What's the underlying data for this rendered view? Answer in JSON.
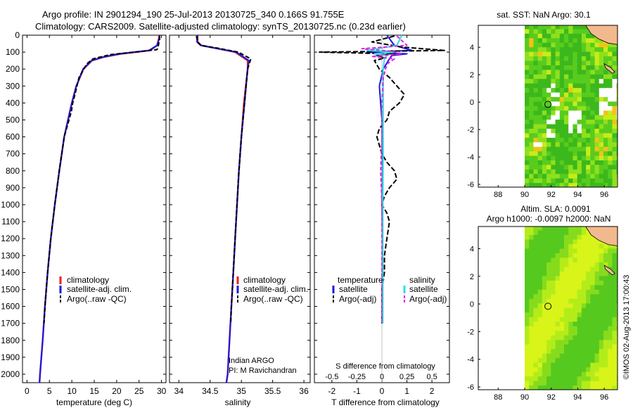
{
  "header": {
    "line1": "Argo profile: IN 2901294_190 25-Jul-2013 20130725_340 0.166S 91.755E",
    "line2": "Climatology: CARS2009. Satellite-adjusted climatology: synTS_20130725.nc (0.23d earlier)"
  },
  "colors": {
    "climatology": "#e8221c",
    "satellite": "#1a1ae0",
    "argo": "#000000",
    "sat_diff": "#2ee0e6",
    "argo_sdiff": "#e020e0",
    "land": "#f2b98e",
    "map_green": "#52c81f",
    "map_lime": "#b0ec1a"
  },
  "chart_data": [
    {
      "id": "temperature",
      "type": "line",
      "xlabel": "temperature (deg C)",
      "xlim": [
        -1,
        31
      ],
      "xticks": [
        0,
        5,
        10,
        15,
        20,
        25,
        30
      ],
      "ylim": [
        2050,
        0
      ],
      "yticks": [
        0,
        100,
        200,
        300,
        400,
        500,
        600,
        700,
        800,
        900,
        1000,
        1100,
        1200,
        1300,
        1400,
        1500,
        1600,
        1700,
        1800,
        1900,
        2000
      ],
      "legend": [
        "climatology",
        "satellite-adj. clim.",
        "Argo(..raw -QC)"
      ],
      "series": [
        {
          "name": "climatology",
          "depth": [
            0,
            20,
            60,
            90,
            110,
            130,
            150,
            200,
            300,
            400,
            600,
            800,
            1000,
            1200,
            1400,
            1600,
            1800,
            2000,
            2050
          ],
          "values": [
            29.5,
            29.4,
            29.0,
            27.5,
            21,
            17,
            14.5,
            12.6,
            11.0,
            10.0,
            8.3,
            7.2,
            6.2,
            5.3,
            4.6,
            4.0,
            3.5,
            2.9,
            2.8
          ]
        },
        {
          "name": "satellite-adj. clim.",
          "depth": [
            0,
            20,
            60,
            90,
            110,
            130,
            150,
            200,
            300,
            400,
            600,
            800,
            1000,
            1200,
            1400,
            1600,
            1800,
            2000,
            2050
          ],
          "values": [
            29.6,
            29.5,
            29.0,
            27.2,
            20.5,
            16.8,
            14.4,
            12.5,
            11.0,
            10.0,
            8.3,
            7.2,
            6.2,
            5.3,
            4.6,
            4.0,
            3.5,
            2.9,
            2.8
          ]
        },
        {
          "name": "Argo(..raw -QC)",
          "depth": [
            5,
            20,
            60,
            85,
            100,
            115,
            140,
            170,
            250,
            350,
            400,
            450,
            600,
            800,
            1000,
            1200,
            1400,
            1600,
            1700
          ],
          "values": [
            29.5,
            29.6,
            29.3,
            29.0,
            24,
            18.5,
            14.7,
            13.3,
            11.6,
            10.7,
            10.2,
            9.9,
            8.3,
            7.2,
            6.2,
            5.3,
            4.6,
            4.0,
            3.8
          ]
        }
      ]
    },
    {
      "id": "salinity",
      "type": "line",
      "xlabel": "salinity",
      "xlim": [
        33.85,
        36.1
      ],
      "xticks": [
        34,
        34.5,
        35,
        35.5,
        36
      ],
      "ylim": [
        2050,
        0
      ],
      "legend": [
        "climatology",
        "satellite-adj. clim.",
        "Argo(..raw -QC)"
      ],
      "annotation": [
        "Indian ARGO",
        "PI: M Ravichandran"
      ],
      "series": [
        {
          "name": "climatology",
          "depth": [
            0,
            40,
            60,
            100,
            150,
            200,
            400,
            600,
            800,
            1000,
            1200,
            1400,
            1600,
            1800,
            2000,
            2050
          ],
          "values": [
            34.3,
            34.3,
            34.36,
            34.9,
            35.1,
            35.1,
            35.04,
            35.0,
            34.96,
            34.93,
            34.9,
            34.87,
            34.84,
            34.81,
            34.78,
            34.76
          ]
        },
        {
          "name": "satellite-adj. clim.",
          "depth": [
            0,
            40,
            60,
            100,
            150,
            200,
            400,
            600,
            800,
            1000,
            1200,
            1400,
            1600,
            1800,
            2000,
            2050
          ],
          "values": [
            34.3,
            34.29,
            34.35,
            34.92,
            35.12,
            35.1,
            35.05,
            35.0,
            34.96,
            34.93,
            34.9,
            34.87,
            34.84,
            34.81,
            34.78,
            34.76
          ]
        },
        {
          "name": "Argo(..raw -QC)",
          "depth": [
            5,
            40,
            60,
            75,
            100,
            140,
            200,
            400,
            600,
            800,
            1000,
            1200,
            1400,
            1600,
            1700
          ],
          "values": [
            34.28,
            34.3,
            34.35,
            34.6,
            34.95,
            35.15,
            35.1,
            35.05,
            35.0,
            34.96,
            34.93,
            34.9,
            34.87,
            34.84,
            34.83
          ]
        }
      ]
    },
    {
      "id": "difference",
      "type": "line",
      "xlabel": "T difference from climatology",
      "xlabel_top": "S difference from climatology",
      "xlim": [
        -2.7,
        2.7
      ],
      "xticks": [
        -2,
        -1,
        0,
        1,
        2
      ],
      "sticks_labels": [
        "-0.5",
        "-0.25",
        "0",
        "0.25",
        "0.5"
      ],
      "sticks_values": [
        -2,
        -1,
        0,
        1,
        2
      ],
      "ylim": [
        2050,
        0
      ],
      "legend_temperature": "temperature",
      "legend_salinity": "salinity",
      "legend_items": [
        "satellite",
        "Argo(-adj)",
        "satellite",
        "Argo(-adj)"
      ],
      "series": [
        {
          "name": "T satellite",
          "depth": [
            0,
            60,
            90,
            100,
            110,
            120,
            140,
            200,
            300,
            500,
            800,
            1000,
            1200,
            1500,
            1700
          ],
          "values": [
            0.2,
            0.5,
            1.2,
            -0.6,
            1.0,
            0.4,
            0.3,
            0.05,
            -0.1,
            0,
            0.02,
            0,
            0.02,
            0.01,
            0
          ]
        },
        {
          "name": "T Argo(-adj)",
          "depth": [
            5,
            40,
            70,
            90,
            100,
            110,
            120,
            135,
            150,
            200,
            250,
            300,
            350,
            400,
            450,
            500,
            550,
            600,
            650,
            700,
            750,
            800,
            850,
            900,
            950,
            1000,
            1050,
            1100,
            1200,
            1300,
            1400,
            1500,
            1600,
            1700
          ],
          "values": [
            0.5,
            -0.4,
            0.8,
            2.5,
            -2.5,
            0.5,
            -0.2,
            0.1,
            -0.3,
            -0.1,
            0.3,
            0.6,
            0.9,
            0.7,
            0.3,
            0.2,
            -0.1,
            -0.2,
            -0.1,
            0.0,
            0.2,
            0.5,
            0.6,
            0.3,
            0.1,
            0.0,
            0.2,
            0.3,
            0.2,
            0.1,
            0.1,
            0.0,
            0.0,
            0.0
          ]
        },
        {
          "name": "S satellite",
          "depth": [
            0,
            60,
            90,
            100,
            110,
            120,
            140,
            200,
            400,
            700,
            1000,
            1400,
            1700
          ],
          "values": [
            0.8,
            0.6,
            -0.6,
            0.5,
            -0.3,
            0.2,
            0.1,
            0.05,
            0.05,
            0.05,
            0.04,
            0.04,
            0.04
          ]
        },
        {
          "name": "S Argo(-adj)",
          "depth": [
            5,
            60,
            80,
            95,
            110,
            125,
            140,
            170,
            250,
            400,
            600,
            800,
            1000,
            1200,
            1400,
            1700
          ],
          "values": [
            0.6,
            1.0,
            -0.8,
            0.4,
            0.8,
            -0.4,
            0.5,
            0.2,
            0.05,
            0.0,
            0.0,
            -0.05,
            0.0,
            0.0,
            0.0,
            0.0
          ]
        }
      ]
    },
    {
      "id": "sst_map",
      "type": "heatmap",
      "title": "sat. SST: NaN Argo: 30.1",
      "xlim": [
        86.5,
        97
      ],
      "ylim": [
        -6.2,
        5.6
      ],
      "xticks": [
        88,
        90,
        92,
        94,
        96
      ],
      "yticks": [
        -6,
        -4,
        -2,
        0,
        2,
        4
      ],
      "argo_position": [
        91.755,
        -0.166
      ]
    },
    {
      "id": "sla_map",
      "type": "heatmap",
      "title_line1": "Altim. SLA: 0.0091",
      "title_line2": "Argo h1000: -0.0097 h2000: NaN",
      "xlim": [
        86.5,
        97
      ],
      "ylim": [
        -6.2,
        5.6
      ],
      "xticks": [
        88,
        90,
        92,
        94,
        96
      ],
      "yticks": [
        -6,
        -4,
        -2,
        0,
        2,
        4
      ],
      "argo_position": [
        91.755,
        -0.166
      ]
    }
  ],
  "footer": {
    "credit": "©IMOS 02-Aug-2013 17:00:43"
  }
}
